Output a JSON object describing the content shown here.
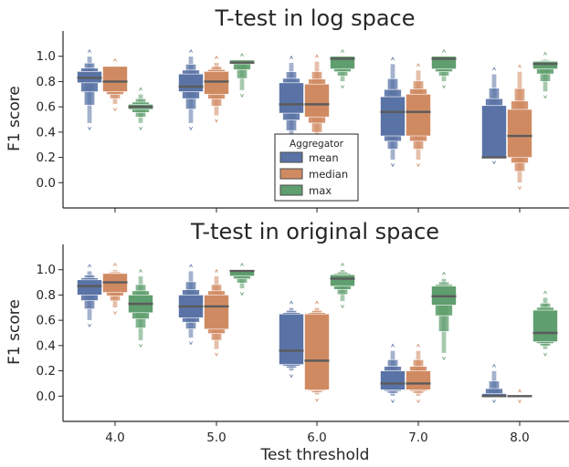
{
  "colors": {
    "mean": "#5a73a6",
    "median": "#d08a62",
    "max": "#5f9e6e",
    "median_line": "#5b5b5b",
    "axis": "#262626"
  },
  "chart_data": [
    {
      "type": "boxen",
      "title": "T-test in log space",
      "xlabel": "",
      "ylabel": "F1 score",
      "categories": [
        "4.0",
        "5.0",
        "6.0",
        "7.0",
        "8.0"
      ],
      "ylim": [
        -0.2,
        1.2
      ],
      "yticks": [
        0.0,
        0.2,
        0.4,
        0.6,
        0.8,
        1.0
      ],
      "grid": false,
      "legend": {
        "title": "Aggregator",
        "placement": "center",
        "entries": [
          "mean",
          "median",
          "max"
        ]
      },
      "series": [
        {
          "name": "mean",
          "boxes": [
            {
              "min": 0.47,
              "q1": 0.79,
              "median": 0.83,
              "q3": 0.88,
              "max": 1.0
            },
            {
              "min": 0.47,
              "q1": 0.72,
              "median": 0.76,
              "q3": 0.86,
              "max": 1.0
            },
            {
              "min": 0.3,
              "q1": 0.55,
              "median": 0.62,
              "q3": 0.79,
              "max": 0.95
            },
            {
              "min": 0.18,
              "q1": 0.37,
              "median": 0.56,
              "q3": 0.68,
              "max": 0.94
            },
            {
              "min": 0.2,
              "q1": 0.2,
              "median": 0.2,
              "q3": 0.61,
              "max": 0.86
            }
          ]
        },
        {
          "name": "median",
          "boxes": [
            {
              "min": 0.62,
              "q1": 0.72,
              "median": 0.8,
              "q3": 0.92,
              "max": 0.93
            },
            {
              "min": 0.53,
              "q1": 0.7,
              "median": 0.8,
              "q3": 0.88,
              "max": 0.95
            },
            {
              "min": 0.3,
              "q1": 0.52,
              "median": 0.62,
              "q3": 0.78,
              "max": 0.96
            },
            {
              "min": 0.18,
              "q1": 0.37,
              "median": 0.56,
              "q3": 0.7,
              "max": 0.89
            },
            {
              "min": 0.0,
              "q1": 0.2,
              "median": 0.37,
              "q3": 0.58,
              "max": 0.88
            }
          ]
        },
        {
          "name": "max",
          "boxes": [
            {
              "min": 0.47,
              "q1": 0.58,
              "median": 0.6,
              "q3": 0.62,
              "max": 0.7
            },
            {
              "min": 0.73,
              "q1": 0.94,
              "median": 0.95,
              "q3": 0.97,
              "max": 0.97
            },
            {
              "min": 0.8,
              "q1": 0.9,
              "median": 0.98,
              "q3": 1.0,
              "max": 1.0
            },
            {
              "min": 0.8,
              "q1": 0.9,
              "median": 0.98,
              "q3": 1.0,
              "max": 1.0
            },
            {
              "min": 0.72,
              "q1": 0.9,
              "median": 0.94,
              "q3": 0.96,
              "max": 0.98
            }
          ]
        }
      ]
    },
    {
      "type": "boxen",
      "title": "T-test in original space",
      "xlabel": "Test threshold",
      "ylabel": "F1 score",
      "categories": [
        "4.0",
        "5.0",
        "6.0",
        "7.0",
        "8.0"
      ],
      "ylim": [
        -0.2,
        1.2
      ],
      "yticks": [
        0.0,
        0.2,
        0.4,
        0.6,
        0.8,
        1.0
      ],
      "grid": false,
      "series": [
        {
          "name": "mean",
          "boxes": [
            {
              "min": 0.6,
              "q1": 0.8,
              "median": 0.87,
              "q3": 0.92,
              "max": 0.99
            },
            {
              "min": 0.46,
              "q1": 0.62,
              "median": 0.71,
              "q3": 0.8,
              "max": 0.99
            },
            {
              "min": 0.2,
              "q1": 0.25,
              "median": 0.36,
              "q3": 0.65,
              "max": 0.7
            },
            {
              "min": 0.0,
              "q1": 0.05,
              "median": 0.1,
              "q3": 0.2,
              "max": 0.36
            },
            {
              "min": 0.0,
              "q1": 0.0,
              "median": 0.0,
              "q3": 0.02,
              "max": 0.2
            }
          ]
        },
        {
          "name": "median",
          "boxes": [
            {
              "min": 0.7,
              "q1": 0.82,
              "median": 0.9,
              "q3": 0.97,
              "max": 1.0
            },
            {
              "min": 0.37,
              "q1": 0.53,
              "median": 0.71,
              "q3": 0.8,
              "max": 0.95
            },
            {
              "min": 0.01,
              "q1": 0.05,
              "median": 0.28,
              "q3": 0.65,
              "max": 0.7
            },
            {
              "min": 0.0,
              "q1": 0.05,
              "median": 0.1,
              "q3": 0.2,
              "max": 0.36
            },
            {
              "min": 0.0,
              "q1": 0.0,
              "median": 0.0,
              "q3": 0.0,
              "max": 0.0
            }
          ]
        },
        {
          "name": "max",
          "boxes": [
            {
              "min": 0.44,
              "q1": 0.66,
              "median": 0.73,
              "q3": 0.8,
              "max": 0.95
            },
            {
              "min": 0.85,
              "q1": 0.95,
              "median": 0.99,
              "q3": 1.0,
              "max": 1.0
            },
            {
              "min": 0.75,
              "q1": 0.87,
              "median": 0.93,
              "q3": 0.96,
              "max": 1.0
            },
            {
              "min": 0.34,
              "q1": 0.72,
              "median": 0.79,
              "q3": 0.87,
              "max": 0.93
            },
            {
              "min": 0.37,
              "q1": 0.43,
              "median": 0.5,
              "q3": 0.68,
              "max": 0.78
            }
          ]
        }
      ]
    }
  ]
}
